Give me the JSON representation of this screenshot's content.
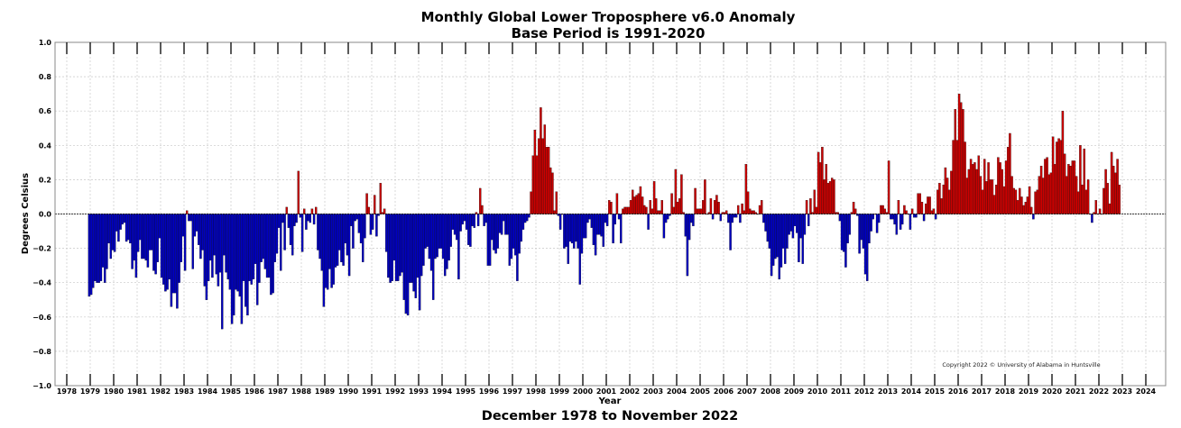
{
  "chart_data": {
    "type": "bar",
    "title": "Monthly Global Lower Troposphere v6.0 Anomaly",
    "subtitle": "Base Period is 1991-2020",
    "xlabel": "Year",
    "ylabel": "Degrees Celsius",
    "caption": "December 1978 to November 2022",
    "copyright": "Copyright 2022 © University of Alabama in Huntsville",
    "start_month": "1978-12",
    "xlim": [
      1978,
      2024
    ],
    "ylim": [
      -1.0,
      1.0
    ],
    "x_ticks": [
      "1978",
      "1979",
      "1980",
      "1981",
      "1982",
      "1983",
      "1984",
      "1985",
      "1986",
      "1987",
      "1988",
      "1989",
      "1990",
      "1991",
      "1992",
      "1993",
      "1994",
      "1995",
      "1996",
      "1997",
      "1998",
      "1999",
      "2000",
      "2001",
      "2002",
      "2003",
      "2004",
      "2005",
      "2006",
      "2007",
      "2008",
      "2009",
      "2010",
      "2011",
      "2012",
      "2013",
      "2014",
      "2015",
      "2016",
      "2017",
      "2018",
      "2019",
      "2020",
      "2021",
      "2022",
      "2023",
      "2024"
    ],
    "y_ticks": [
      "1.0",
      "0.8",
      "0.6",
      "0.4",
      "0.2",
      "0.0",
      "−0.2",
      "−0.4",
      "−0.6",
      "−0.8",
      "−1.0"
    ],
    "grid": true,
    "colors": {
      "positive": "#cc0000",
      "negative": "#0000c0",
      "edge": "#111111"
    },
    "values": [
      -0.48,
      -0.47,
      -0.43,
      -0.39,
      -0.4,
      -0.4,
      -0.39,
      -0.31,
      -0.4,
      -0.32,
      -0.17,
      -0.26,
      -0.21,
      -0.22,
      -0.1,
      -0.16,
      -0.09,
      -0.06,
      -0.05,
      -0.16,
      -0.15,
      -0.17,
      -0.32,
      -0.27,
      -0.37,
      -0.22,
      -0.15,
      -0.26,
      -0.26,
      -0.27,
      -0.31,
      -0.21,
      -0.21,
      -0.33,
      -0.35,
      -0.28,
      -0.14,
      -0.37,
      -0.41,
      -0.45,
      -0.44,
      -0.38,
      -0.54,
      -0.46,
      -0.46,
      -0.55,
      -0.4,
      -0.28,
      -0.13,
      -0.33,
      0.02,
      -0.04,
      -0.04,
      -0.32,
      -0.13,
      -0.1,
      -0.18,
      -0.26,
      -0.21,
      -0.42,
      -0.5,
      -0.39,
      -0.27,
      -0.37,
      -0.24,
      -0.35,
      -0.42,
      -0.34,
      -0.67,
      -0.24,
      -0.34,
      -0.38,
      -0.44,
      -0.64,
      -0.59,
      -0.44,
      -0.45,
      -0.48,
      -0.64,
      -0.39,
      -0.54,
      -0.59,
      -0.39,
      -0.41,
      -0.38,
      -0.29,
      -0.53,
      -0.4,
      -0.28,
      -0.26,
      -0.32,
      -0.37,
      -0.37,
      -0.47,
      -0.46,
      -0.28,
      -0.23,
      -0.08,
      -0.33,
      -0.05,
      -0.21,
      0.04,
      -0.08,
      -0.18,
      -0.24,
      -0.07,
      -0.05,
      0.25,
      -0.02,
      -0.22,
      0.03,
      -0.09,
      -0.04,
      -0.05,
      0.03,
      -0.06,
      0.04,
      -0.21,
      -0.26,
      -0.33,
      -0.54,
      -0.43,
      -0.44,
      -0.32,
      -0.43,
      -0.41,
      -0.31,
      -0.3,
      -0.21,
      -0.28,
      -0.3,
      -0.17,
      -0.24,
      -0.36,
      -0.07,
      -0.2,
      -0.04,
      -0.03,
      -0.11,
      -0.17,
      -0.28,
      -0.14,
      0.12,
      0.04,
      -0.12,
      -0.09,
      0.11,
      -0.13,
      -0.01,
      0.18,
      0.01,
      0.03,
      -0.22,
      -0.37,
      -0.4,
      -0.39,
      -0.27,
      -0.39,
      -0.39,
      -0.36,
      -0.34,
      -0.5,
      -0.58,
      -0.59,
      -0.4,
      -0.4,
      -0.45,
      -0.49,
      -0.37,
      -0.56,
      -0.36,
      -0.3,
      -0.2,
      -0.19,
      -0.26,
      -0.33,
      -0.5,
      -0.26,
      -0.25,
      -0.2,
      -0.2,
      -0.26,
      -0.36,
      -0.32,
      -0.27,
      -0.19,
      -0.09,
      -0.12,
      -0.15,
      -0.38,
      -0.1,
      -0.06,
      -0.04,
      -0.09,
      -0.18,
      -0.19,
      -0.07,
      -0.08,
      0.01,
      -0.07,
      0.15,
      0.05,
      -0.07,
      -0.05,
      -0.3,
      -0.3,
      -0.15,
      -0.21,
      -0.23,
      -0.2,
      -0.11,
      -0.12,
      -0.04,
      -0.12,
      -0.12,
      -0.3,
      -0.26,
      -0.2,
      -0.24,
      -0.39,
      -0.23,
      -0.16,
      -0.09,
      -0.05,
      -0.04,
      -0.02,
      0.13,
      0.34,
      0.49,
      0.34,
      0.44,
      0.62,
      0.44,
      0.52,
      0.39,
      0.39,
      0.27,
      0.24,
      0.02,
      0.13,
      -0.01,
      -0.09,
      0.0,
      -0.2,
      -0.19,
      -0.29,
      -0.16,
      -0.17,
      -0.2,
      -0.16,
      -0.2,
      -0.41,
      -0.23,
      -0.14,
      -0.14,
      -0.05,
      -0.03,
      -0.08,
      -0.18,
      -0.24,
      -0.12,
      -0.12,
      -0.13,
      -0.19,
      -0.05,
      -0.07,
      0.08,
      0.07,
      -0.17,
      -0.06,
      0.12,
      -0.03,
      -0.17,
      0.03,
      0.04,
      0.04,
      0.04,
      0.08,
      0.14,
      0.1,
      0.11,
      0.12,
      0.16,
      0.1,
      0.05,
      0.04,
      -0.09,
      0.08,
      0.03,
      0.19,
      0.09,
      0.02,
      0.02,
      0.08,
      -0.14,
      -0.05,
      -0.03,
      -0.01,
      0.12,
      0.04,
      0.26,
      0.07,
      0.09,
      0.23,
      0.01,
      -0.13,
      -0.36,
      -0.15,
      -0.05,
      -0.07,
      0.15,
      0.03,
      0.03,
      0.03,
      0.08,
      0.2,
      0.0,
      0.01,
      0.09,
      -0.03,
      0.08,
      0.11,
      0.07,
      -0.04,
      0.01,
      0.01,
      0.02,
      -0.05,
      -0.21,
      -0.05,
      -0.02,
      -0.02,
      0.05,
      -0.05,
      0.06,
      0.02,
      0.29,
      0.13,
      0.03,
      0.02,
      0.02,
      0.01,
      0.0,
      0.05,
      0.08,
      -0.05,
      -0.1,
      -0.16,
      -0.2,
      -0.36,
      -0.3,
      -0.26,
      -0.25,
      -0.38,
      -0.31,
      -0.2,
      -0.29,
      -0.2,
      -0.12,
      -0.1,
      -0.14,
      -0.07,
      -0.11,
      -0.28,
      -0.14,
      -0.29,
      -0.12,
      0.08,
      -0.07,
      0.09,
      0.01,
      0.14,
      0.04,
      0.36,
      0.3,
      0.39,
      0.2,
      0.29,
      0.18,
      0.19,
      0.21,
      0.2,
      0.01,
      0.01,
      -0.04,
      -0.21,
      -0.22,
      -0.31,
      -0.17,
      -0.12,
      0.01,
      0.07,
      0.03,
      -0.01,
      -0.23,
      -0.15,
      -0.2,
      -0.35,
      -0.39,
      -0.17,
      -0.1,
      -0.03,
      0.0,
      -0.11,
      -0.05,
      0.05,
      0.05,
      0.03,
      0.01,
      0.31,
      -0.03,
      -0.03,
      -0.06,
      -0.12,
      0.08,
      -0.09,
      -0.06,
      0.05,
      0.02,
      0.0,
      -0.09,
      0.03,
      -0.02,
      -0.02,
      0.12,
      0.12,
      0.07,
      -0.04,
      0.06,
      0.1,
      0.1,
      0.02,
      0.03,
      -0.03,
      0.14,
      0.18,
      0.09,
      0.17,
      0.27,
      0.21,
      0.14,
      0.25,
      0.43,
      0.61,
      0.43,
      0.7,
      0.65,
      0.61,
      0.42,
      0.21,
      0.26,
      0.32,
      0.29,
      0.3,
      0.26,
      0.34,
      0.22,
      0.14,
      0.32,
      0.19,
      0.3,
      0.2,
      0.2,
      0.11,
      0.17,
      0.33,
      0.3,
      0.26,
      0.16,
      0.31,
      0.39,
      0.47,
      0.22,
      0.15,
      0.14,
      0.08,
      0.15,
      0.1,
      0.05,
      0.07,
      0.1,
      0.16,
      0.04,
      -0.03,
      0.13,
      0.14,
      0.22,
      0.28,
      0.21,
      0.32,
      0.33,
      0.23,
      0.24,
      0.45,
      0.29,
      0.42,
      0.44,
      0.43,
      0.6,
      0.35,
      0.22,
      0.29,
      0.28,
      0.31,
      0.31,
      0.22,
      0.13,
      0.4,
      0.17,
      0.38,
      0.14,
      0.2,
      0.0,
      -0.05,
      0.01,
      0.08,
      0.0,
      0.03,
      0.0,
      0.15,
      0.26,
      0.18,
      0.06,
      0.36,
      0.28,
      0.24,
      0.32,
      0.17
    ]
  }
}
